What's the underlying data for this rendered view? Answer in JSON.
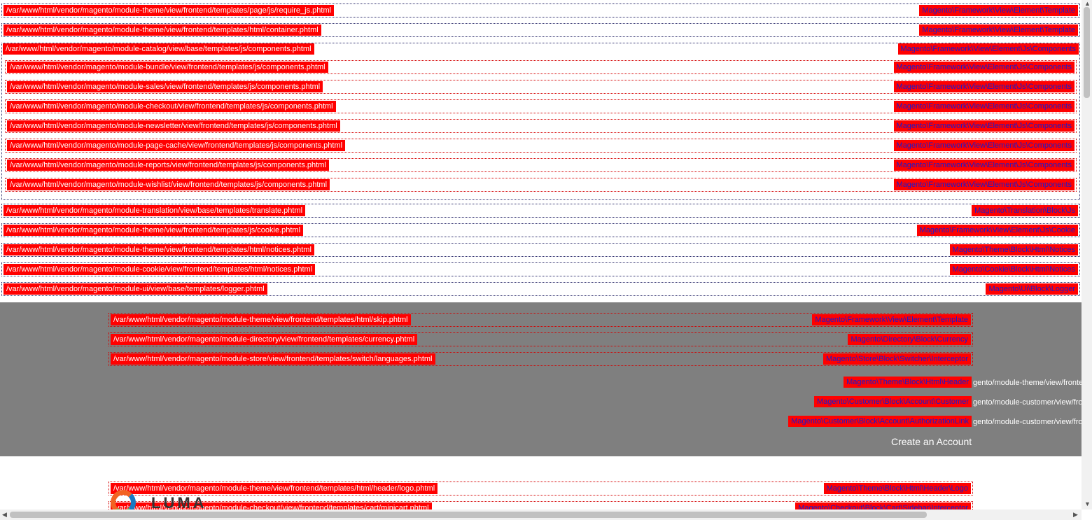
{
  "top_rows": [
    {
      "path": "/var/www/html/vendor/magento/module-theme/view/frontend/templates/page/js/require_js.phtml",
      "class": "Magento\\Framework\\View\\Element\\Template"
    },
    {
      "path": "/var/www/html/vendor/magento/module-theme/view/frontend/templates/html/container.phtml",
      "class": "Magento\\Framework\\View\\Element\\Template"
    },
    {
      "path": "/var/www/html/vendor/magento/module-catalog/view/base/templates/js/components.phtml",
      "class": "Magento\\Framework\\View\\Element\\Js\\Components"
    }
  ],
  "components_rows": [
    {
      "path": "/var/www/html/vendor/magento/module-bundle/view/frontend/templates/js/components.phtml",
      "class": "Magento\\Framework\\View\\Element\\Js\\Components"
    },
    {
      "path": "/var/www/html/vendor/magento/module-sales/view/frontend/templates/js/components.phtml",
      "class": "Magento\\Framework\\View\\Element\\Js\\Components"
    },
    {
      "path": "/var/www/html/vendor/magento/module-checkout/view/frontend/templates/js/components.phtml",
      "class": "Magento\\Framework\\View\\Element\\Js\\Components"
    },
    {
      "path": "/var/www/html/vendor/magento/module-newsletter/view/frontend/templates/js/components.phtml",
      "class": "Magento\\Framework\\View\\Element\\Js\\Components"
    },
    {
      "path": "/var/www/html/vendor/magento/module-page-cache/view/frontend/templates/js/components.phtml",
      "class": "Magento\\Framework\\View\\Element\\Js\\Components"
    },
    {
      "path": "/var/www/html/vendor/magento/module-reports/view/frontend/templates/js/components.phtml",
      "class": "Magento\\Framework\\View\\Element\\Js\\Components"
    },
    {
      "path": "/var/www/html/vendor/magento/module-wishlist/view/frontend/templates/js/components.phtml",
      "class": "Magento\\Framework\\View\\Element\\Js\\Components"
    }
  ],
  "lower_rows": [
    {
      "path": "/var/www/html/vendor/magento/module-translation/view/base/templates/translate.phtml",
      "class": "Magento\\Translation\\Block\\Js"
    },
    {
      "path": "/var/www/html/vendor/magento/module-theme/view/frontend/templates/js/cookie.phtml",
      "class": "Magento\\Framework\\View\\Element\\Js\\Cookie"
    },
    {
      "path": "/var/www/html/vendor/magento/module-theme/view/frontend/templates/html/notices.phtml",
      "class": "Magento\\Theme\\Block\\Html\\Notices"
    },
    {
      "path": "/var/www/html/vendor/magento/module-cookie/view/frontend/templates/html/notices.phtml",
      "class": "Magento\\Cookie\\Block\\Html\\Notices"
    },
    {
      "path": "/var/www/html/vendor/magento/module-ui/view/base/templates/logger.phtml",
      "class": "Magento\\Ui\\Block\\Logger"
    }
  ],
  "band_rows": [
    {
      "path": "/var/www/html/vendor/magento/module-theme/view/frontend/templates/html/skip.phtml",
      "class": "Magento\\Framework\\View\\Element\\Template"
    },
    {
      "path": "/var/www/html/vendor/magento/module-directory/view/frontend/templates/currency.phtml",
      "class": "Magento\\Directory\\Block\\Currency"
    },
    {
      "path": "/var/www/html/vendor/magento/module-store/view/frontend/templates/switch/languages.phtml",
      "class": "Magento\\Store\\Block\\Switcher\\Interceptor"
    }
  ],
  "band_right_rows": [
    {
      "class": "Magento\\Theme\\Block\\Html\\Header",
      "overflow": "gento/module-theme/view/frontend"
    },
    {
      "class": "Magento\\Customer\\Block\\Account\\Customer",
      "overflow": "gento/module-customer/view/frontend"
    },
    {
      "class": "Magento\\Customer\\Block\\Account\\AuthorizationLink",
      "overflow": "gento/module-customer/view/frontend"
    }
  ],
  "create_account": "Create an Account",
  "header_rows": [
    {
      "path": "/var/www/html/vendor/magento/module-theme/view/frontend/templates/html/header/logo.phtml",
      "class": "Magento\\Theme\\Block\\Html\\Header\\Logo"
    },
    {
      "path": "/var/www/html/vendor/magento/module-checkout/view/frontend/templates/cart/minicart.phtml",
      "class": "Magento\\Checkout\\Block\\Cart\\Sidebar\\Interceptor"
    }
  ],
  "logo_text": "LUMA",
  "colors": {
    "hint_bg": "#ff0000",
    "band_bg": "#7f7f7f"
  }
}
